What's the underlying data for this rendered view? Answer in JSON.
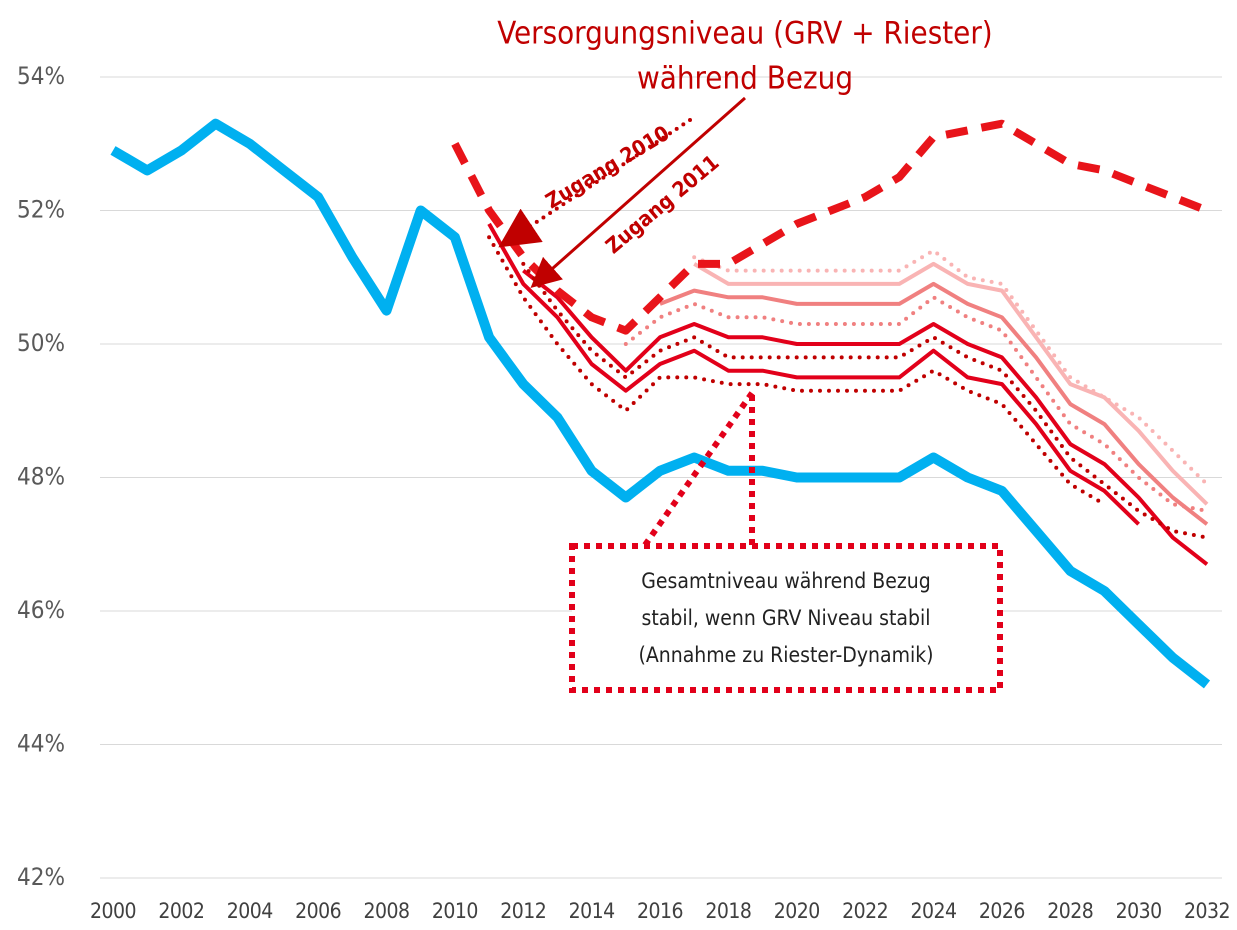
{
  "chart_data": {
    "type": "line",
    "title_lines": [
      "Versorgungsniveau (GRV + Riester)",
      "während Bezug"
    ],
    "annotations": [
      "Zugang 2010",
      "Zugang 2011"
    ],
    "note_lines": [
      "Gesamtniveau während Bezug",
      "stabil, wenn GRV Niveau stabil",
      "(Annahme zu Riester-Dynamik)"
    ],
    "x": [
      2000,
      2001,
      2002,
      2003,
      2004,
      2005,
      2006,
      2007,
      2008,
      2009,
      2010,
      2011,
      2012,
      2013,
      2014,
      2015,
      2016,
      2017,
      2018,
      2019,
      2020,
      2021,
      2022,
      2023,
      2024,
      2025,
      2026,
      2027,
      2028,
      2029,
      2030,
      2031,
      2032
    ],
    "xlim": [
      2000,
      2032
    ],
    "xticks": [
      2000,
      2002,
      2004,
      2006,
      2008,
      2010,
      2012,
      2014,
      2016,
      2018,
      2020,
      2022,
      2024,
      2026,
      2028,
      2030,
      2032
    ],
    "ylim": [
      42,
      54
    ],
    "yticks": [
      {
        "value": 42,
        "label": "42%"
      },
      {
        "value": 44,
        "label": "44%"
      },
      {
        "value": 46,
        "label": "46%"
      },
      {
        "value": 48,
        "label": "48%"
      },
      {
        "value": 50,
        "label": "50%"
      },
      {
        "value": 52,
        "label": "52%"
      },
      {
        "value": 54,
        "label": "54%"
      }
    ],
    "grid": true,
    "series": [
      {
        "color": "#00b0f0",
        "style": "solid",
        "width": 10,
        "values": [
          52.9,
          52.6,
          52.9,
          53.3,
          53.0,
          52.6,
          52.2,
          51.3,
          50.5,
          52.0,
          51.6,
          50.1,
          49.4,
          48.9,
          48.1,
          47.7,
          48.1,
          48.3,
          48.1,
          48.1,
          48.0,
          48.0,
          48.0,
          48.0,
          48.3,
          48.0,
          47.8,
          47.2,
          46.6,
          46.3,
          45.8,
          45.3,
          44.9
        ]
      },
      {
        "color": "#f9b4b4",
        "style": "solid",
        "width": 4,
        "values": [
          null,
          null,
          null,
          null,
          null,
          null,
          null,
          null,
          null,
          null,
          null,
          null,
          null,
          null,
          null,
          null,
          null,
          51.2,
          50.9,
          50.9,
          50.9,
          50.9,
          50.9,
          50.9,
          51.2,
          50.9,
          50.8,
          50.1,
          49.4,
          49.2,
          48.7,
          48.1,
          47.6
        ]
      },
      {
        "color": "#f9b4b4",
        "style": "dotted",
        "width": 4,
        "values": [
          null,
          null,
          null,
          null,
          null,
          null,
          null,
          null,
          null,
          null,
          null,
          null,
          null,
          null,
          null,
          null,
          null,
          51.3,
          51.1,
          51.1,
          51.1,
          51.1,
          51.1,
          51.1,
          51.4,
          51.0,
          50.9,
          50.2,
          49.5,
          49.2,
          48.9,
          48.4,
          47.9
        ]
      },
      {
        "color": "#f08080",
        "style": "solid",
        "width": 4,
        "values": [
          null,
          null,
          null,
          null,
          null,
          null,
          null,
          null,
          null,
          null,
          null,
          null,
          null,
          null,
          null,
          null,
          50.6,
          50.8,
          50.7,
          50.7,
          50.6,
          50.6,
          50.6,
          50.6,
          50.9,
          50.6,
          50.4,
          49.8,
          49.1,
          48.8,
          48.2,
          47.7,
          47.3
        ]
      },
      {
        "color": "#f08080",
        "style": "dotted",
        "width": 4,
        "values": [
          null,
          null,
          null,
          null,
          null,
          null,
          null,
          null,
          null,
          null,
          null,
          null,
          null,
          null,
          null,
          50.0,
          50.4,
          50.6,
          50.4,
          50.4,
          50.3,
          50.3,
          50.3,
          50.3,
          50.7,
          50.4,
          50.2,
          49.5,
          48.8,
          48.5,
          48.0,
          47.6,
          47.5
        ]
      },
      {
        "color": "#e2001a",
        "style": "solid",
        "width": 4,
        "values": [
          null,
          null,
          null,
          null,
          null,
          null,
          null,
          null,
          null,
          null,
          null,
          null,
          51.1,
          50.7,
          50.1,
          49.6,
          50.1,
          50.3,
          50.1,
          50.1,
          50.0,
          50.0,
          50.0,
          50.0,
          50.3,
          50.0,
          49.8,
          49.2,
          48.5,
          48.2,
          47.7,
          47.1,
          46.7
        ]
      },
      {
        "color": "#c00000",
        "style": "dotted",
        "width": 4,
        "values": [
          null,
          null,
          null,
          null,
          null,
          null,
          null,
          null,
          null,
          null,
          null,
          null,
          51.2,
          50.5,
          49.9,
          49.5,
          49.9,
          50.1,
          49.8,
          49.8,
          49.8,
          49.8,
          49.8,
          49.8,
          50.1,
          49.8,
          49.6,
          49.0,
          48.3,
          47.9,
          47.5,
          47.2,
          47.1
        ]
      },
      {
        "color": "#e2001a",
        "style": "solid",
        "width": 4,
        "values": [
          null,
          null,
          null,
          null,
          null,
          null,
          null,
          null,
          null,
          null,
          null,
          51.8,
          50.9,
          50.4,
          49.7,
          49.3,
          49.7,
          49.9,
          49.6,
          49.6,
          49.5,
          49.5,
          49.5,
          49.5,
          49.9,
          49.5,
          49.4,
          48.8,
          48.1,
          47.8,
          47.3,
          null,
          null
        ]
      },
      {
        "color": "#c00000",
        "style": "dotted",
        "width": 4,
        "values": [
          null,
          null,
          null,
          null,
          null,
          null,
          null,
          null,
          null,
          null,
          null,
          51.6,
          50.7,
          50.0,
          49.4,
          49.0,
          49.5,
          49.5,
          49.4,
          49.4,
          49.3,
          49.3,
          49.3,
          49.3,
          49.6,
          49.3,
          49.1,
          48.5,
          47.9,
          47.6,
          null,
          null,
          null
        ]
      },
      {
        "color": "#e8141a",
        "style": "dashed",
        "width": 8,
        "values": [
          null,
          null,
          null,
          null,
          null,
          null,
          null,
          null,
          null,
          null,
          53.0,
          52.0,
          51.3,
          50.8,
          50.4,
          50.2,
          50.7,
          51.2,
          51.2,
          51.5,
          51.8,
          52.0,
          52.2,
          52.5,
          53.1,
          53.2,
          53.3,
          53.0,
          52.7,
          52.6,
          52.4,
          52.2,
          52.0
        ]
      }
    ]
  }
}
